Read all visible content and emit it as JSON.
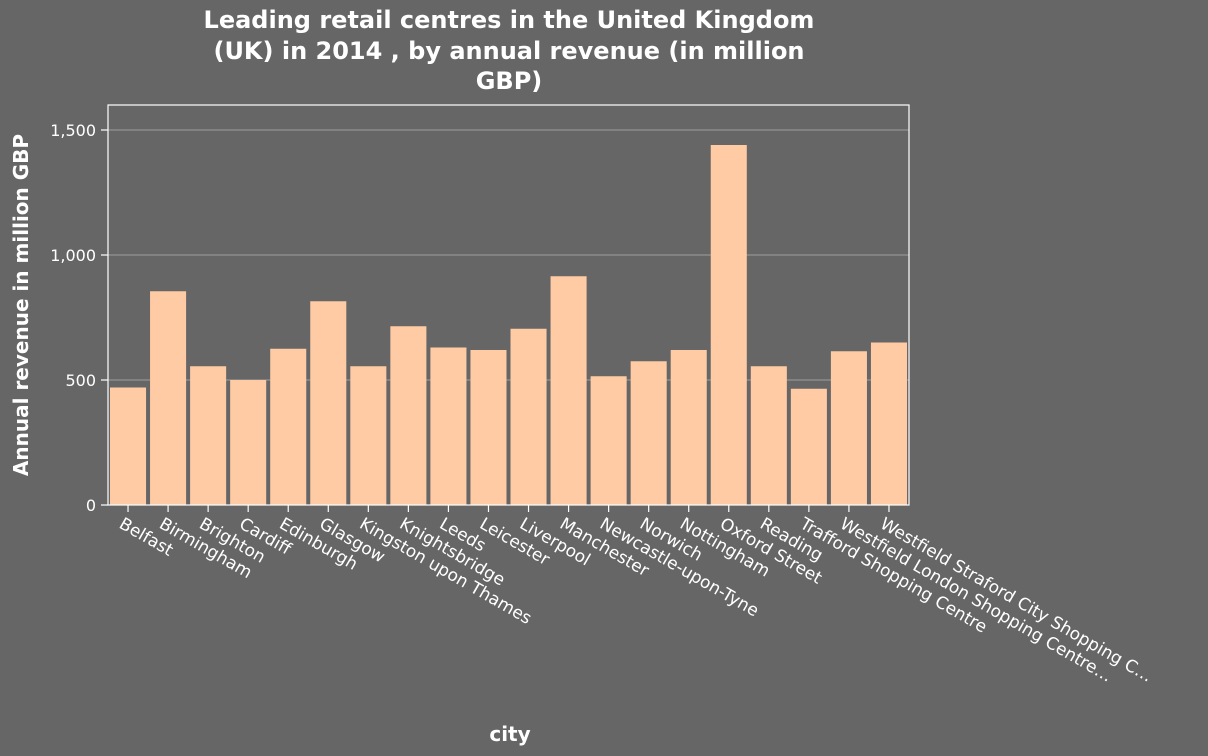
{
  "chart_data": {
    "type": "bar",
    "title_lines": [
      "Leading retail centres in the United Kingdom",
      "(UK) in 2014 , by annual revenue (in million",
      "GBP)"
    ],
    "xlabel": "city",
    "ylabel": "Annual revenue in million GBP",
    "ylim": [
      0,
      1600
    ],
    "yticks": [
      0,
      500,
      1000,
      1500
    ],
    "ytick_labels": [
      "0",
      "500",
      "1,000",
      "1,500"
    ],
    "grid": true,
    "bar_color": "#ffcba4",
    "background_color": "#666666",
    "categories": [
      "Belfast",
      "Birmingham",
      "Brighton",
      "Cardiff",
      "Edinburgh",
      "Glasgow",
      "Kingston upon Thames",
      "Knightsbridge",
      "Leeds",
      "Leicester",
      "Liverpool",
      "Manchester",
      "Newcastle-upon-Tyne",
      "Norwich",
      "Nottingham",
      "Oxford Street",
      "Reading",
      "Trafford Shopping Centre",
      "Westfield London Shopping Centre…",
      "Westfield Straford City Shopping C…"
    ],
    "values": [
      470,
      855,
      555,
      500,
      625,
      815,
      555,
      715,
      630,
      620,
      705,
      915,
      515,
      575,
      620,
      1440,
      555,
      465,
      615,
      650
    ]
  }
}
